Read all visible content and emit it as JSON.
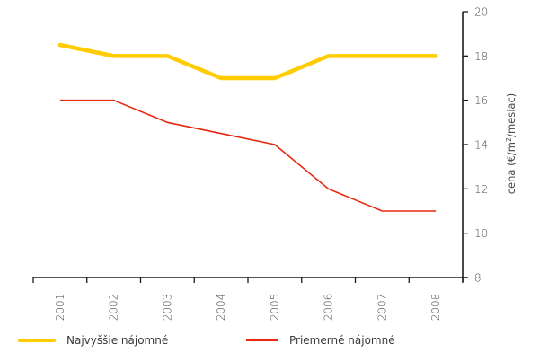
{
  "chart_data": {
    "type": "line",
    "title": "",
    "categories": [
      "2001",
      "2002",
      "2003",
      "2004",
      "2005",
      "2006",
      "2007",
      "2008"
    ],
    "series": [
      {
        "name": "Najvyššie nájomné",
        "color": "#FFCC00",
        "values": [
          18.5,
          18,
          18,
          17,
          17,
          18,
          18,
          18
        ]
      },
      {
        "name": "Priemerné nájomné",
        "color": "#E8270E",
        "values": [
          16,
          16,
          15,
          14.5,
          14,
          12,
          11,
          11
        ]
      }
    ],
    "xlabel": "",
    "ylabel": "cena (€/m²/mesiac)",
    "ylabel_parts": {
      "before": "cena (€/m",
      "sup": "2",
      "after": "/mesiac)"
    },
    "ylim": [
      8,
      20
    ],
    "yticks": [
      8,
      10,
      12,
      14,
      16,
      18,
      20
    ],
    "y_axis_side": "right",
    "grid": false,
    "legend_position": "bottom"
  },
  "legend": {
    "items": [
      {
        "label": "Najvyššie nájomné",
        "color": "#FFCC00"
      },
      {
        "label": "Priemerné nájomné",
        "color": "#E8270E"
      }
    ]
  }
}
